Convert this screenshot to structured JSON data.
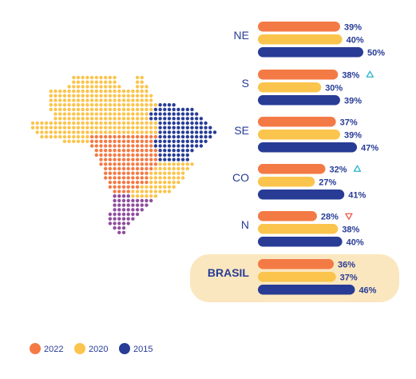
{
  "chart_data": {
    "type": "bar",
    "orientation": "horizontal",
    "series": [
      {
        "name": "2022",
        "color": "#f47a45",
        "values": [
          39,
          38,
          37,
          32,
          28,
          36
        ]
      },
      {
        "name": "2020",
        "color": "#fbc44c",
        "values": [
          40,
          30,
          39,
          27,
          38,
          37
        ]
      },
      {
        "name": "2015",
        "color": "#283c96",
        "values": [
          50,
          39,
          47,
          41,
          40,
          46
        ]
      }
    ],
    "categories": [
      "NE",
      "S",
      "SE",
      "CO",
      "N",
      "BRASIL"
    ],
    "value_suffix": "%",
    "annotations": [
      {
        "category": "S",
        "series": "2022",
        "marker": "triangle-up-outline",
        "color": "#2bb5c9"
      },
      {
        "category": "CO",
        "series": "2022",
        "marker": "triangle-up-outline",
        "color": "#2bb5c9"
      },
      {
        "category": "N",
        "series": "2022",
        "marker": "triangle-down-outline",
        "color": "#ef5a4b"
      }
    ],
    "highlight_category": "BRASIL",
    "highlight_color": "#fbe7bf",
    "label_color": "#283c96",
    "legend": {
      "position": "bottom-left",
      "items": [
        "2022",
        "2020",
        "2015"
      ]
    },
    "map": {
      "colors": {
        "NE": "#283c96",
        "S": "#8e4e9e",
        "SE": "#fbc44c",
        "CO": "#f47a45",
        "N": "#fbc44c"
      }
    }
  }
}
